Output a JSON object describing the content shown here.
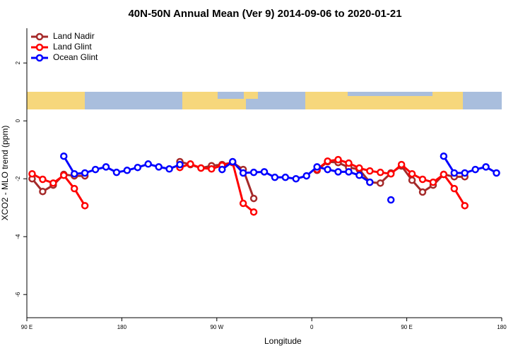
{
  "chart_data": {
    "type": "line",
    "title": "40N-50N Annual Mean (Ver 9)   2014-09-06 to 2020-01-21",
    "x_label": "Longitude",
    "y_label": "XCO2 - MLO trend (ppm)",
    "x": [
      95,
      105,
      115,
      125,
      135,
      145,
      155,
      165,
      175,
      185,
      195,
      205,
      215,
      225,
      235,
      245,
      255,
      265,
      275,
      285,
      295,
      305,
      315,
      325,
      335,
      345,
      355,
      365,
      375,
      385,
      395,
      405,
      415,
      425,
      435,
      445,
      455,
      465,
      475,
      485,
      495,
      505,
      515,
      525,
      535
    ],
    "series": [
      {
        "name": "Land Nadir",
        "color": "#a52a2a",
        "values": [
          -2.0,
          -2.44,
          -2.22,
          -1.85,
          -1.9,
          -1.9,
          null,
          null,
          null,
          null,
          null,
          null,
          null,
          null,
          -1.41,
          -1.51,
          -1.63,
          -1.55,
          -1.51,
          -1.44,
          -1.68,
          -2.68,
          null,
          null,
          null,
          null,
          null,
          -1.71,
          -1.41,
          -1.44,
          -1.61,
          -1.68,
          -2.12,
          -2.15,
          -1.8,
          -1.56,
          -2.05,
          -2.46,
          -2.22,
          -1.85,
          -1.93,
          -1.93,
          null,
          null,
          null
        ]
      },
      {
        "name": "Land Glint",
        "color": "#ff0000",
        "values": [
          -1.83,
          -2.02,
          -2.15,
          -1.88,
          -2.34,
          -2.93,
          null,
          null,
          null,
          null,
          null,
          null,
          null,
          null,
          -1.61,
          -1.49,
          -1.63,
          -1.66,
          -1.54,
          -1.44,
          -2.85,
          -3.15,
          null,
          null,
          null,
          null,
          null,
          -1.68,
          -1.39,
          -1.34,
          -1.46,
          -1.63,
          -1.73,
          -1.78,
          -1.83,
          -1.51,
          -1.83,
          -2.02,
          -2.12,
          -1.85,
          -2.34,
          -2.93,
          null,
          null,
          null
        ]
      },
      {
        "name": "Ocean Glint",
        "color": "#0000ff",
        "values": [
          null,
          null,
          null,
          -1.22,
          -1.83,
          -1.8,
          -1.68,
          -1.59,
          -1.78,
          -1.71,
          -1.61,
          -1.49,
          -1.59,
          -1.66,
          -1.51,
          null,
          null,
          null,
          -1.68,
          -1.41,
          -1.8,
          -1.78,
          -1.76,
          -1.95,
          -1.95,
          -2.0,
          -1.9,
          -1.59,
          -1.68,
          -1.76,
          -1.76,
          -1.88,
          -2.12,
          null,
          -2.73,
          null,
          null,
          null,
          null,
          -1.22,
          -1.8,
          -1.8,
          -1.68,
          -1.59,
          -1.8
        ]
      }
    ],
    "xlim": [
      90,
      540
    ],
    "xticks": [
      {
        "value": 90,
        "label": "90 E"
      },
      180,
      {
        "value": 270,
        "label": "90 W"
      },
      {
        "value": 360,
        "label": "0"
      },
      {
        "value": 450,
        "label": "90 E"
      },
      {
        "value": 540,
        "label": "180"
      }
    ],
    "ylim": [
      -6.8,
      3.2
    ],
    "yticks": [
      -6,
      -4,
      -2,
      0,
      2
    ],
    "legend": "topleft"
  }
}
